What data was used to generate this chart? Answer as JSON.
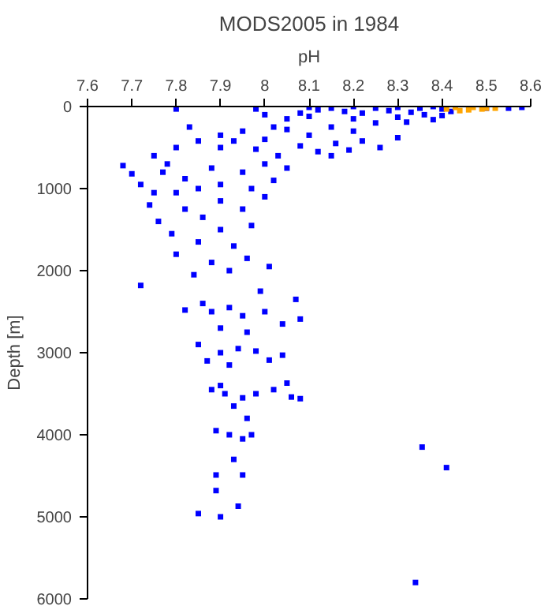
{
  "chart_data": {
    "type": "scatter",
    "title": "MODS2005 in 1984",
    "xlabel": "pH",
    "ylabel": "Depth [m]",
    "xlim": [
      7.6,
      8.6
    ],
    "xticks": [
      7.6,
      7.7,
      7.8,
      7.9,
      8,
      8.1,
      8.2,
      8.3,
      8.4,
      8.5,
      8.6
    ],
    "ylim": [
      6000,
      0
    ],
    "yticks": [
      0,
      1000,
      2000,
      3000,
      4000,
      5000,
      6000
    ],
    "grid": false,
    "marker": "square",
    "series": [
      {
        "color": "#0000ff",
        "x": [
          8.1,
          8.15,
          8.2,
          8.25,
          8.3,
          8.35,
          8.38,
          8.4,
          8.42,
          8.58,
          8.55,
          8.5,
          8.12,
          8.18,
          8.22,
          8.28,
          8.33,
          8.36,
          8.1,
          8.2,
          8.3,
          8.25,
          8.05,
          8.0,
          7.98,
          7.8,
          8.08,
          8.15,
          8.32,
          8.38,
          8.4,
          8.2,
          8.22,
          8.3,
          8.26,
          8.16,
          8.1,
          8.12,
          8.05,
          8.0,
          7.95,
          7.9,
          7.85,
          7.8,
          7.75,
          7.77,
          7.83,
          7.9,
          7.98,
          8.03,
          8.08,
          8.15,
          7.93,
          8.19,
          8.02,
          7.68,
          7.7,
          7.72,
          7.78,
          7.82,
          7.88,
          7.95,
          8.0,
          8.05,
          7.9,
          7.85,
          8.02,
          7.97,
          7.8,
          7.75,
          7.74,
          7.76,
          7.79,
          7.82,
          7.86,
          7.9,
          7.95,
          8.0,
          7.85,
          7.9,
          7.93,
          7.97,
          7.8,
          7.88,
          7.92,
          7.96,
          8.01,
          7.84,
          7.72,
          7.99,
          7.86,
          7.88,
          7.92,
          7.95,
          8.0,
          8.04,
          8.08,
          8.07,
          7.82,
          7.9,
          7.96,
          7.85,
          7.9,
          7.94,
          7.98,
          8.04,
          8.01,
          7.87,
          7.92,
          7.88,
          7.91,
          7.95,
          7.98,
          8.02,
          8.05,
          8.06,
          8.08,
          7.93,
          7.9,
          7.89,
          7.92,
          7.95,
          7.97,
          7.96,
          7.89,
          7.95,
          7.93,
          7.89,
          7.85,
          7.9,
          7.94,
          8.355,
          8.41,
          8.34
        ],
        "values": [
          10,
          20,
          0,
          20,
          10,
          20,
          0,
          30,
          60,
          10,
          20,
          20,
          40,
          60,
          80,
          50,
          70,
          100,
          120,
          150,
          130,
          200,
          150,
          100,
          30,
          30,
          80,
          250,
          190,
          160,
          110,
          300,
          420,
          380,
          500,
          450,
          350,
          550,
          280,
          400,
          300,
          350,
          420,
          500,
          600,
          800,
          250,
          500,
          520,
          600,
          480,
          600,
          420,
          530,
          250,
          720,
          820,
          950,
          700,
          880,
          750,
          800,
          700,
          750,
          950,
          1000,
          900,
          1000,
          1050,
          1050,
          1200,
          1400,
          1550,
          1250,
          1350,
          1150,
          1250,
          1100,
          1650,
          1500,
          1700,
          1450,
          1800,
          1900,
          2000,
          1850,
          1950,
          2050,
          2180,
          2250,
          2400,
          2500,
          2450,
          2550,
          2500,
          2650,
          2590,
          2350,
          2480,
          2700,
          2750,
          2900,
          3000,
          2950,
          2980,
          3030,
          3090,
          3100,
          3150,
          3450,
          3500,
          3550,
          3500,
          3450,
          3370,
          3540,
          3560,
          3650,
          3400,
          3950,
          4000,
          4050,
          4000,
          3800,
          4490,
          4490,
          4300,
          4680,
          4960,
          5000,
          4870,
          4150,
          4400,
          5800
        ]
      },
      {
        "color": "#ffa500",
        "x": [
          8.41,
          8.43,
          8.5,
          8.46,
          8.47,
          8.49,
          8.52,
          8.44
        ],
        "values": [
          30,
          10,
          20,
          40,
          10,
          30,
          20,
          50
        ]
      }
    ]
  }
}
